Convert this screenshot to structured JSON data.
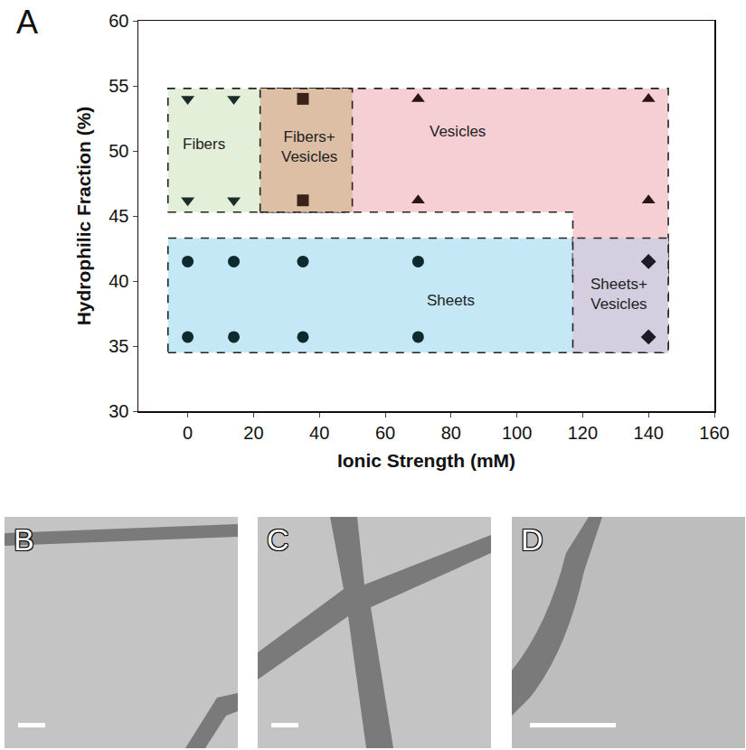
{
  "chart_data": {
    "type": "scatter",
    "panel_label": "A",
    "xlabel": "Ionic Strength (mM)",
    "ylabel": "Hydrophilic Fraction (%)",
    "xlim": [
      -15,
      160
    ],
    "ylim": [
      30,
      60
    ],
    "xticks": [
      0,
      20,
      40,
      60,
      80,
      100,
      120,
      140,
      160
    ],
    "yticks": [
      30,
      35,
      40,
      45,
      50,
      55,
      60
    ],
    "grid": false,
    "regions": [
      {
        "label": "Sheets",
        "color": "#c4e8f5",
        "x": [
          -6,
          146,
          146,
          -6,
          -6
        ],
        "y": [
          34.5,
          34.5,
          43.3,
          43.3,
          34.5
        ],
        "label_x": 80,
        "label_y": 38.5
      },
      {
        "label": "Vesicles",
        "color": "#f5cfd3",
        "x": [
          22,
          146,
          146,
          117,
          117,
          22,
          22
        ],
        "y": [
          54.8,
          54.8,
          40,
          40,
          45.3,
          45.3,
          54.8
        ],
        "label_x": 82,
        "label_y": 51.5
      },
      {
        "label": "Fibers",
        "color": "#e3efd8",
        "x": [
          -6,
          48,
          48,
          -6,
          -6
        ],
        "y": [
          45.3,
          45.3,
          54.8,
          54.8,
          45.3
        ],
        "label_x": 5,
        "label_y": 50.5
      },
      {
        "label": "Fibers+\nVesicles",
        "color": "#dcbfa5",
        "x": [
          22,
          50,
          50,
          22,
          22
        ],
        "y": [
          45.3,
          45.3,
          54.8,
          54.8,
          45.3
        ],
        "label_x": 37,
        "label_y": 50.3
      },
      {
        "label": "Sheets+\nVesicles",
        "color": "#d5cde0",
        "x": [
          117,
          146,
          146,
          117,
          117
        ],
        "y": [
          34.5,
          34.5,
          43.3,
          43.3,
          34.5
        ],
        "label_x": 131,
        "label_y": 39
      }
    ],
    "series": [
      {
        "name": "Fibers",
        "marker": "triangle-down",
        "color": "#1b2b28",
        "x": [
          0,
          14,
          0,
          14
        ],
        "y": [
          54,
          54,
          46.2,
          46.2
        ]
      },
      {
        "name": "Fibers+Vesicles",
        "marker": "square",
        "color": "#3a2218",
        "x": [
          35,
          35
        ],
        "y": [
          54,
          46.2
        ]
      },
      {
        "name": "Vesicles",
        "marker": "triangle-up",
        "color": "#2a1414",
        "x": [
          70,
          140,
          70,
          140
        ],
        "y": [
          54,
          54,
          46.2,
          46.2
        ]
      },
      {
        "name": "Sheets",
        "marker": "circle",
        "color": "#0f2a2e",
        "x": [
          0,
          14,
          35,
          70,
          0,
          14,
          35,
          70
        ],
        "y": [
          41.5,
          41.5,
          41.5,
          41.5,
          35.7,
          35.7,
          35.7,
          35.7
        ]
      },
      {
        "name": "Sheets+Vesicles",
        "marker": "diamond",
        "color": "#1e1a26",
        "x": [
          140,
          140
        ],
        "y": [
          41.5,
          35.7
        ]
      }
    ],
    "micrographs": [
      {
        "label": "B"
      },
      {
        "label": "C"
      },
      {
        "label": "D"
      }
    ]
  }
}
